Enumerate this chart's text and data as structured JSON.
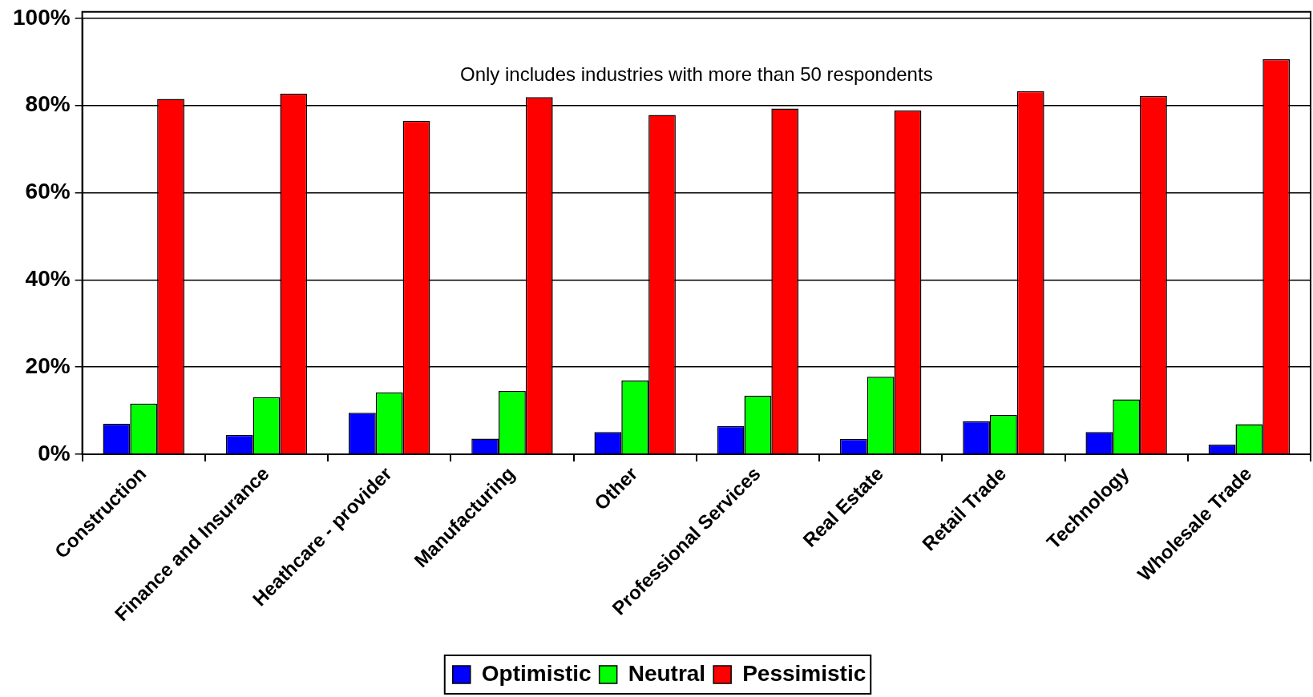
{
  "chart_data": {
    "type": "bar",
    "categories": [
      "Construction",
      "Finance and Insurance",
      "Heathcare - provider",
      "Manufacturing",
      "Other",
      "Professional Services",
      "Real Estate",
      "Retail Trade",
      "Technology",
      "Wholesale Trade"
    ],
    "series": [
      {
        "name": "Optimistic",
        "color": "#0000ff",
        "values": [
          7.0,
          4.4,
          9.5,
          3.6,
          5.1,
          6.5,
          3.5,
          7.6,
          5.1,
          2.2
        ]
      },
      {
        "name": "Neutral",
        "color": "#00ff00",
        "values": [
          11.6,
          13.1,
          14.2,
          14.5,
          16.9,
          13.4,
          17.8,
          9.0,
          12.6,
          6.9
        ]
      },
      {
        "name": "Pessimistic",
        "color": "#ff0000",
        "values": [
          81.5,
          82.7,
          76.5,
          81.9,
          77.8,
          79.3,
          78.9,
          83.3,
          82.2,
          90.6
        ]
      }
    ],
    "ylim": [
      0,
      100
    ],
    "yticks": [
      {
        "value": 0,
        "label": "0%"
      },
      {
        "value": 20,
        "label": "20%"
      },
      {
        "value": 40,
        "label": "40%"
      },
      {
        "value": 60,
        "label": "60%"
      },
      {
        "value": 80,
        "label": "80%"
      },
      {
        "value": 100,
        "label": "100%"
      }
    ],
    "grid": "y",
    "legend": "bottom",
    "annotations": [
      "Only includes industries with more than 50 respondents"
    ]
  }
}
